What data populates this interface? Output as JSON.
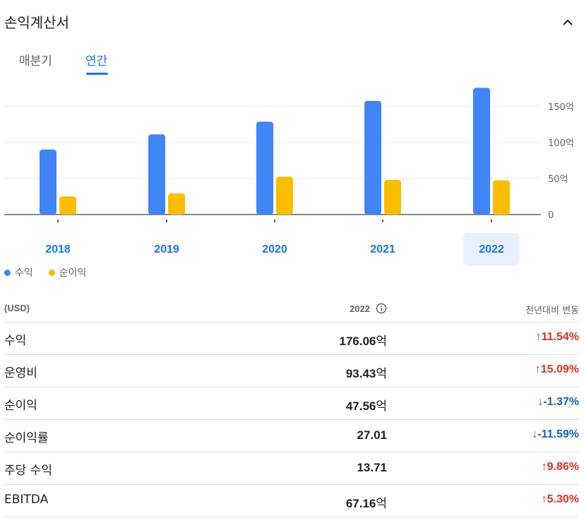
{
  "header": {
    "title": "손익계산서"
  },
  "tabs": [
    {
      "label": "매분기",
      "selected": false
    },
    {
      "label": "연간",
      "selected": true
    }
  ],
  "colors": {
    "revenue": "#4285f4",
    "net_income": "#fbbc04",
    "accent": "#1a73e8",
    "positive": "#d93025",
    "negative": "#1a5fb4"
  },
  "chart_data": {
    "type": "bar",
    "categories": [
      "2018",
      "2019",
      "2020",
      "2021",
      "2022"
    ],
    "series": [
      {
        "name": "수익",
        "values": [
          90.3,
          111.4,
          129.0,
          157.9,
          176.06
        ]
      },
      {
        "name": "순이익",
        "values": [
          25.2,
          29.4,
          52.4,
          48.2,
          47.56
        ]
      }
    ],
    "y_ticks": [
      "0",
      "50억",
      "100억",
      "150억"
    ],
    "y_tick_values": [
      0,
      50,
      100,
      150
    ],
    "ylim": [
      0,
      180
    ],
    "selected_category": "2022",
    "grid": true
  },
  "table": {
    "header": {
      "unit": "(USD)",
      "period": "2022",
      "change": "전년대비 변동"
    },
    "rows": [
      {
        "label": "수익",
        "value": "176.06",
        "unit": "억",
        "change": "11.54%",
        "direction": "up"
      },
      {
        "label": "운영비",
        "value": "93.43",
        "unit": "억",
        "change": "15.09%",
        "direction": "up"
      },
      {
        "label": "순이익",
        "value": "47.56",
        "unit": "억",
        "change": "-1.37%",
        "direction": "down"
      },
      {
        "label": "순이익률",
        "value": "27.01",
        "unit": "",
        "change": "-11.59%",
        "direction": "down"
      },
      {
        "label": "주당 수익",
        "value": "13.71",
        "unit": "",
        "change": "9.86%",
        "direction": "up"
      },
      {
        "label": "EBITDA",
        "value": "67.16",
        "unit": "억",
        "change": "5.30%",
        "direction": "up"
      }
    ]
  }
}
